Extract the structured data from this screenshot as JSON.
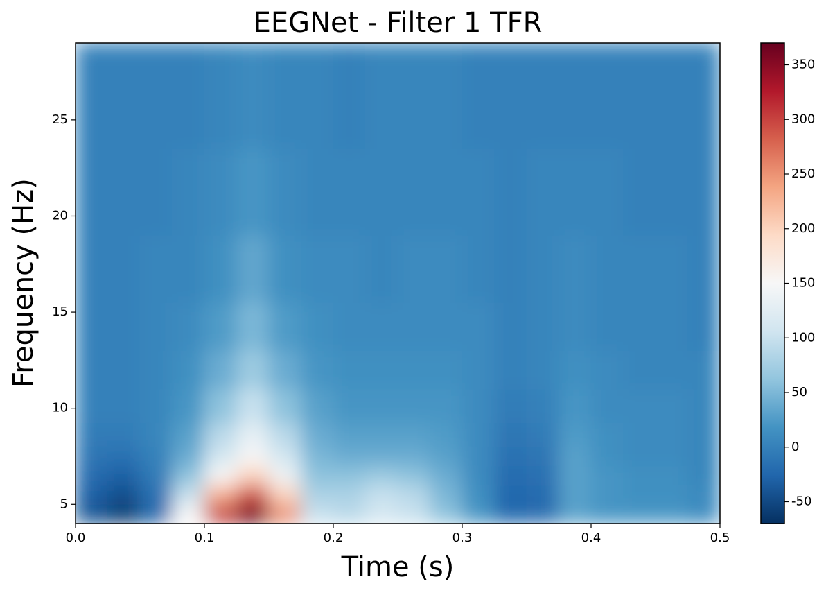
{
  "chart_data": {
    "type": "heatmap",
    "title": "EEGNet - Filter 1 TFR",
    "x_label": "Time (s)",
    "y_label": "Frequency (Hz)",
    "xlim": [
      0,
      0.5
    ],
    "xticks": [
      {
        "value": 0,
        "label": "0.0"
      },
      0.1,
      0.2,
      0.3,
      0.4,
      0.5
    ],
    "ylim": [
      4,
      29
    ],
    "yticks": [
      5,
      10,
      15,
      20,
      25
    ],
    "clim": [
      -70,
      370
    ],
    "cticks": [
      -50,
      0,
      50,
      100,
      150,
      200,
      250,
      300,
      350
    ],
    "colormap": [
      "#053061",
      "#2166ac",
      "#4393c3",
      "#92c5de",
      "#d1e5f0",
      "#f7f7f7",
      "#fddbc7",
      "#f4a582",
      "#d6604d",
      "#b2182b",
      "#67001f"
    ],
    "x": [
      0.0125,
      0.0375,
      0.0625,
      0.0875,
      0.1125,
      0.1375,
      0.1625,
      0.1875,
      0.2125,
      0.2375,
      0.2625,
      0.2875,
      0.3125,
      0.3375,
      0.3625,
      0.3875,
      0.4125,
      0.4375,
      0.4625,
      0.4875
    ],
    "y": [
      4.5,
      5.5,
      6.5,
      7.5,
      8.5,
      10,
      12,
      14,
      17,
      21,
      26
    ],
    "z": [
      [
        -40,
        -60,
        -20,
        150,
        300,
        360,
        250,
        100,
        90,
        110,
        100,
        60,
        20,
        -25,
        -20,
        30,
        20,
        20,
        20,
        10
      ],
      [
        -30,
        -45,
        -15,
        100,
        230,
        290,
        200,
        80,
        80,
        100,
        90,
        50,
        15,
        -25,
        -20,
        30,
        20,
        15,
        15,
        10
      ],
      [
        -20,
        -30,
        -5,
        60,
        150,
        200,
        140,
        60,
        60,
        70,
        60,
        40,
        10,
        -20,
        -15,
        30,
        20,
        15,
        15,
        5
      ],
      [
        -10,
        -15,
        0,
        40,
        110,
        150,
        110,
        50,
        40,
        40,
        40,
        30,
        10,
        -15,
        -10,
        30,
        15,
        10,
        10,
        5
      ],
      [
        -5,
        -5,
        5,
        30,
        90,
        130,
        90,
        40,
        30,
        30,
        30,
        25,
        10,
        -10,
        -5,
        25,
        15,
        10,
        10,
        5
      ],
      [
        0,
        0,
        5,
        20,
        60,
        100,
        60,
        30,
        20,
        20,
        20,
        20,
        10,
        -5,
        0,
        20,
        10,
        10,
        10,
        5
      ],
      [
        0,
        0,
        5,
        15,
        40,
        70,
        40,
        20,
        15,
        15,
        15,
        15,
        10,
        0,
        5,
        15,
        10,
        5,
        5,
        5
      ],
      [
        0,
        0,
        5,
        10,
        25,
        50,
        25,
        15,
        10,
        10,
        10,
        10,
        10,
        0,
        5,
        10,
        5,
        5,
        5,
        0
      ],
      [
        0,
        0,
        5,
        5,
        15,
        35,
        15,
        10,
        10,
        5,
        10,
        10,
        5,
        0,
        5,
        10,
        5,
        5,
        5,
        0
      ],
      [
        0,
        0,
        0,
        5,
        10,
        20,
        10,
        5,
        5,
        5,
        5,
        5,
        5,
        0,
        5,
        5,
        5,
        0,
        0,
        0
      ],
      [
        0,
        0,
        0,
        0,
        5,
        10,
        5,
        5,
        0,
        5,
        5,
        5,
        0,
        0,
        0,
        0,
        0,
        0,
        0,
        0
      ]
    ]
  }
}
